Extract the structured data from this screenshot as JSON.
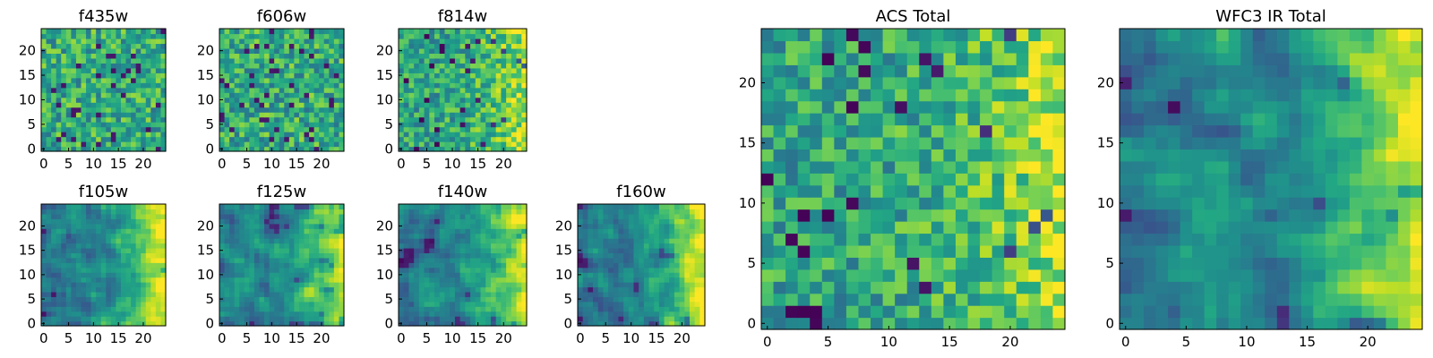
{
  "chart_data": [
    {
      "type": "heatmap",
      "title": "f435w",
      "xticks": [
        "0",
        "5",
        "10",
        "15",
        "20"
      ],
      "yticks": [
        "0",
        "5",
        "10",
        "15",
        "20"
      ],
      "xlim": [
        0,
        25
      ],
      "ylim": [
        0,
        25
      ],
      "grid": false,
      "colormap": "viridis",
      "pattern": "noise",
      "seed": 11
    },
    {
      "type": "heatmap",
      "title": "f606w",
      "xticks": [
        "0",
        "5",
        "10",
        "15",
        "20"
      ],
      "yticks": [
        "0",
        "5",
        "10",
        "15",
        "20"
      ],
      "xlim": [
        0,
        25
      ],
      "ylim": [
        0,
        25
      ],
      "grid": false,
      "colormap": "viridis",
      "pattern": "noise",
      "seed": 23
    },
    {
      "type": "heatmap",
      "title": "f814w",
      "xticks": [
        "0",
        "5",
        "10",
        "15",
        "20"
      ],
      "yticks": [
        "0",
        "5",
        "10",
        "15",
        "20"
      ],
      "xlim": [
        0,
        25
      ],
      "ylim": [
        0,
        25
      ],
      "grid": false,
      "colormap": "viridis",
      "pattern": "noise-gradient",
      "seed": 37
    },
    {
      "type": "heatmap",
      "title": "f105w",
      "xticks": [
        "0",
        "5",
        "10",
        "15",
        "20"
      ],
      "yticks": [
        "0",
        "5",
        "10",
        "15",
        "20"
      ],
      "xlim": [
        0,
        25
      ],
      "ylim": [
        0,
        25
      ],
      "grid": false,
      "colormap": "viridis",
      "pattern": "smooth-gradient",
      "seed": 41
    },
    {
      "type": "heatmap",
      "title": "f125w",
      "xticks": [
        "0",
        "5",
        "10",
        "15",
        "20"
      ],
      "yticks": [
        "0",
        "5",
        "10",
        "15",
        "20"
      ],
      "xlim": [
        0,
        25
      ],
      "ylim": [
        0,
        25
      ],
      "grid": false,
      "colormap": "viridis",
      "pattern": "smooth-gradient",
      "seed": 53
    },
    {
      "type": "heatmap",
      "title": "f140w",
      "xticks": [
        "0",
        "5",
        "10",
        "15",
        "20"
      ],
      "yticks": [
        "0",
        "5",
        "10",
        "15",
        "20"
      ],
      "xlim": [
        0,
        25
      ],
      "ylim": [
        0,
        25
      ],
      "grid": false,
      "colormap": "viridis",
      "pattern": "smooth-gradient",
      "seed": 67
    },
    {
      "type": "heatmap",
      "title": "f160w",
      "xticks": [
        "0",
        "5",
        "10",
        "15",
        "20"
      ],
      "yticks": [
        "0",
        "5",
        "10",
        "15",
        "20"
      ],
      "xlim": [
        0,
        25
      ],
      "ylim": [
        0,
        25
      ],
      "grid": false,
      "colormap": "viridis",
      "pattern": "smooth-gradient",
      "seed": 79
    },
    {
      "type": "heatmap",
      "title": "ACS Total",
      "xticks": [
        "0",
        "5",
        "10",
        "15",
        "20"
      ],
      "yticks": [
        "0",
        "5",
        "10",
        "15",
        "20"
      ],
      "xlim": [
        0,
        25
      ],
      "ylim": [
        0,
        25
      ],
      "grid": false,
      "colormap": "viridis",
      "pattern": "noise-gradient",
      "seed": 97
    },
    {
      "type": "heatmap",
      "title": "WFC3 IR Total",
      "xticks": [
        "0",
        "5",
        "10",
        "15",
        "20"
      ],
      "yticks": [
        "0",
        "5",
        "10",
        "15",
        "20"
      ],
      "xlim": [
        0,
        25
      ],
      "ylim": [
        0,
        25
      ],
      "grid": false,
      "colormap": "viridis",
      "pattern": "smooth-gradient",
      "seed": 101
    }
  ]
}
